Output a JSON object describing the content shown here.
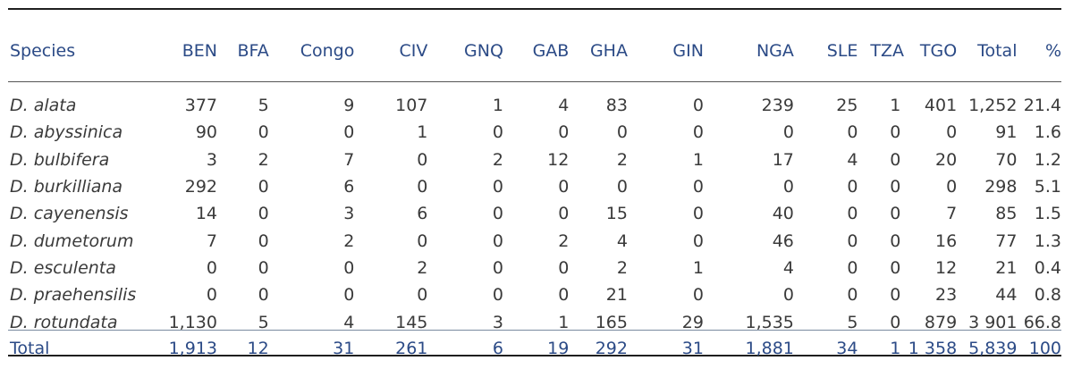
{
  "table": {
    "headers": [
      "Species",
      "BEN",
      "BFA",
      "Congo",
      "CIV",
      "GNQ",
      "GAB",
      "GHA",
      "GIN",
      "NGA",
      "SLE",
      "TZA",
      "TGO",
      "Total",
      "%"
    ],
    "rows": [
      [
        "D. alata",
        "377",
        "5",
        "9",
        "107",
        "1",
        "4",
        "83",
        "0",
        "239",
        "25",
        "1",
        "401",
        "1,252",
        "21.4"
      ],
      [
        "D. abyssinica",
        "90",
        "0",
        "0",
        "1",
        "0",
        "0",
        "0",
        "0",
        "0",
        "0",
        "0",
        "0",
        "91",
        "1.6"
      ],
      [
        "D. bulbifera",
        "3",
        "2",
        "7",
        "0",
        "2",
        "12",
        "2",
        "1",
        "17",
        "4",
        "0",
        "20",
        "70",
        "1.2"
      ],
      [
        "D. burkilliana",
        "292",
        "0",
        "6",
        "0",
        "0",
        "0",
        "0",
        "0",
        "0",
        "0",
        "0",
        "0",
        "298",
        "5.1"
      ],
      [
        "D. cayenensis",
        "14",
        "0",
        "3",
        "6",
        "0",
        "0",
        "15",
        "0",
        "40",
        "0",
        "0",
        "7",
        "85",
        "1.5"
      ],
      [
        "D. dumetorum",
        "7",
        "0",
        "2",
        "0",
        "0",
        "2",
        "4",
        "0",
        "46",
        "0",
        "0",
        "16",
        "77",
        "1.3"
      ],
      [
        "D. esculenta",
        "0",
        "0",
        "0",
        "2",
        "0",
        "0",
        "2",
        "1",
        "4",
        "0",
        "0",
        "12",
        "21",
        "0.4"
      ],
      [
        "D. praehensilis",
        "0",
        "0",
        "0",
        "0",
        "0",
        "0",
        "21",
        "0",
        "0",
        "0",
        "0",
        "23",
        "44",
        "0.8"
      ],
      [
        "D. rotundata",
        "1,130",
        "5",
        "4",
        "145",
        "3",
        "1",
        "165",
        "29",
        "1,535",
        "5",
        "0",
        "879",
        "3 901",
        "66.8"
      ]
    ],
    "total_row": [
      "Total",
      "1,913",
      "12",
      "31",
      "261",
      "6",
      "19",
      "292",
      "31",
      "1,881",
      "34",
      "1",
      "1 358",
      "5,839",
      "100"
    ]
  },
  "colors": {
    "header_text": "#2b4a86",
    "body_text": "#3a3a3a",
    "rule": "#1f1f1f"
  }
}
